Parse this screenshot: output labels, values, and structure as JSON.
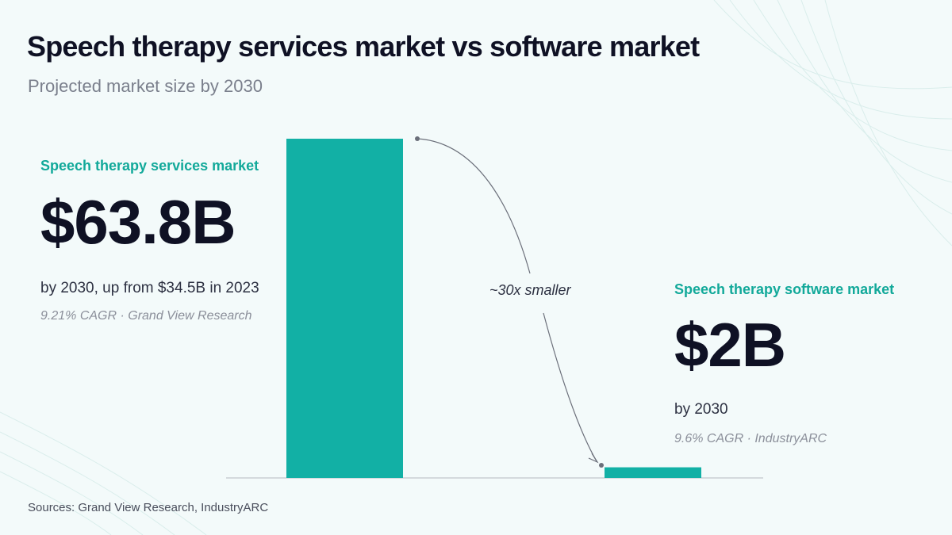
{
  "title": "Speech therapy services market vs software market",
  "subtitle": "Projected market size by 2030",
  "services": {
    "label": "Speech therapy services market",
    "value": "$63.8B",
    "description": "by 2030, up from $34.5B in 2023",
    "note": "9.21% CAGR · Grand View Research"
  },
  "software": {
    "label": "Speech therapy software market",
    "value": "$2B",
    "description": "by 2030",
    "note": "9.6% CAGR · IndustryARC"
  },
  "annotation": "~30x smaller",
  "sources": "Sources: Grand View Research, IndustryARC",
  "colors": {
    "bar": "#12b0a5",
    "accent": "#12a99a",
    "text": "#0f1124",
    "connector": "#6b6f7a"
  },
  "chart_data": {
    "type": "bar",
    "categories": [
      "Speech therapy services market",
      "Speech therapy software market"
    ],
    "values": [
      63.8,
      2
    ],
    "ylabel": "",
    "xlabel": "",
    "grid": false,
    "legend": "none"
  }
}
